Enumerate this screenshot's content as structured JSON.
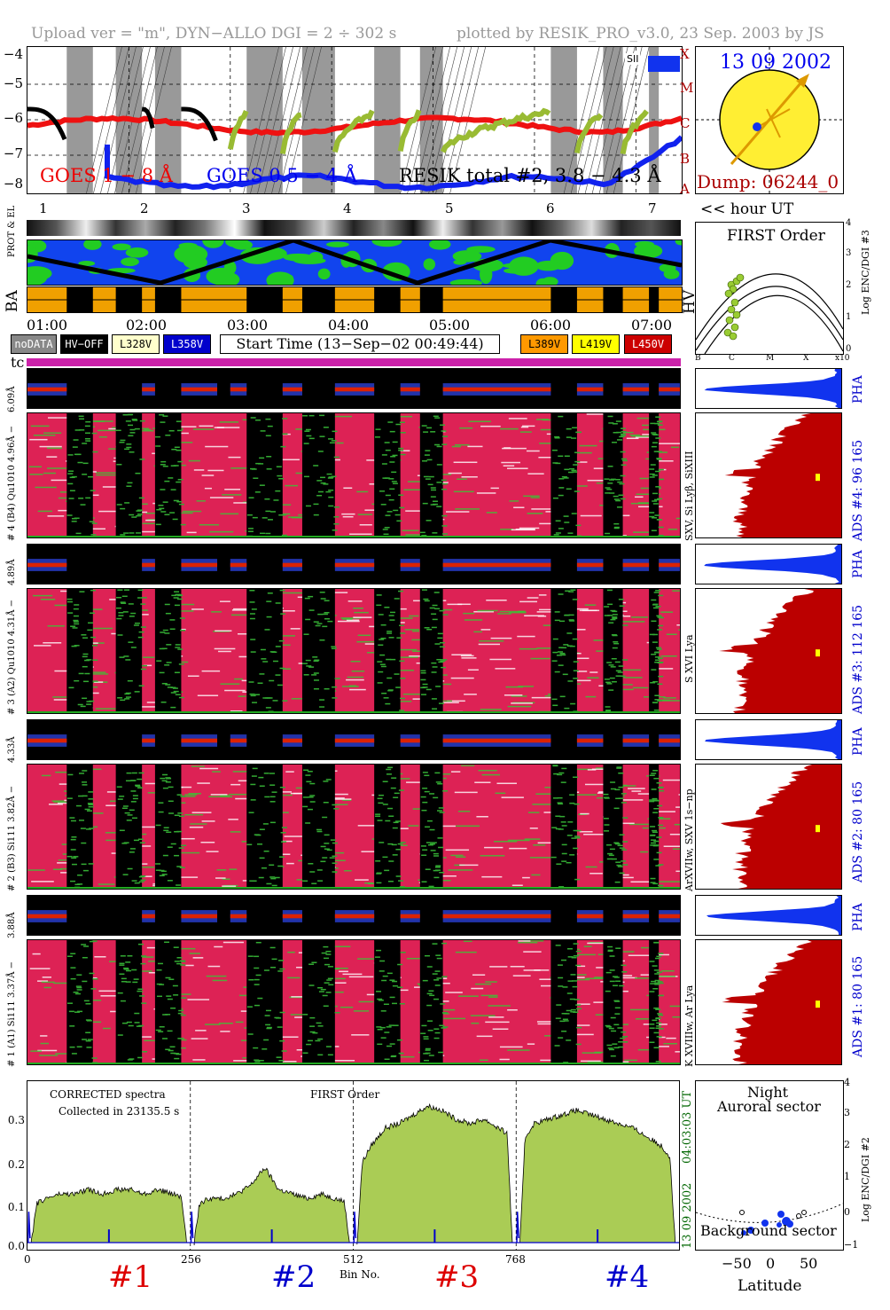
{
  "header": {
    "upload": "Upload ver = \"m\", DYN−ALLO DGI =   2 ÷ 302 s",
    "plotted": "plotted by RESIK_PRO_v3.0, 23 Sep. 2003 by JS"
  },
  "goes": {
    "labels": [
      "GOES 1 − 8 Å",
      "GOES 0.5 − 4 Å",
      "RESIK total #2, 3.8 − 4.3 Å"
    ],
    "colors": [
      "#ee0000",
      "#0000ee",
      "#000000"
    ],
    "yticks": [
      "−4",
      "−5",
      "−6",
      "−7",
      "−8"
    ],
    "classes": [
      "X",
      "M",
      "C",
      "B",
      "A"
    ],
    "saa_label": "SII",
    "hour_ticks": [
      "1",
      "2",
      "3",
      "4",
      "5",
      "6",
      "7"
    ],
    "hour_label": "<< hour UT"
  },
  "sun": {
    "date": "13 09 2002",
    "dump": "Dump: 06244_0"
  },
  "orbit": {
    "side_labels": [
      "PROT & EL",
      "BA",
      "HV"
    ],
    "times": [
      "01:00",
      "02:00",
      "03:00",
      "04:00",
      "05:00",
      "06:00",
      "07:00"
    ],
    "legend": [
      "noDATA",
      "HV−OFF",
      "L328V",
      "L358V",
      "L389V",
      "L419V",
      "L450V"
    ],
    "legend_colors": [
      "#888888",
      "#000000",
      "#ffffcc",
      "#0000cc",
      "#ff9900",
      "#ffff00",
      "#cc0000"
    ],
    "start_time": "Start Time (13−Sep−02 00:49:44)",
    "tc_label": "tc"
  },
  "first_order": {
    "title": "FIRST Order",
    "axis_label": "Log ENC/DGI #3",
    "yticks": [
      "4",
      "3",
      "2",
      "1",
      "0"
    ],
    "xticks": [
      "B",
      "C",
      "M",
      "X",
      "x10"
    ]
  },
  "channels": [
    {
      "pha_label": "6.09Å",
      "label": "# 4 (B4) Qu1010 4.96Å −",
      "lines": "SXV, Si Lyβ, SiXIII",
      "ads": "ADS #4:    96 165"
    },
    {
      "pha_label": "4.89Å",
      "label": "# 3 (A2) Qu1010 4.31Å −",
      "lines": "S XVI Lya",
      "ads": "ADS #3:    112 165"
    },
    {
      "pha_label": "4.33Å",
      "label": "# 2 (B3) Si111 3.82Å −",
      "lines": "ArXVIIw, SXV 1s−np",
      "ads": "ADS #2:    80 165"
    },
    {
      "pha_label": "3.88Å",
      "label": "# 1 (A1) Si111 3.37Å −",
      "lines": "K XVIIIw, Ar Lya",
      "ads": "ADS #1:    80 165"
    }
  ],
  "pha_word": "PHA",
  "spectrum": {
    "title1": "CORRECTED spectra",
    "title2": "Collected in 23135.5 s",
    "order": "FIRST Order",
    "date": "13 09 2002",
    "time": "04:03:03 UT",
    "xlabel": "Bin No.",
    "xticks": [
      "0",
      "256",
      "512",
      "768"
    ],
    "yticks": [
      "0.3",
      "0.2",
      "0.1",
      "0.0"
    ],
    "channels": [
      "#1",
      "#2",
      "#3",
      "#4"
    ],
    "channel_colors": [
      "#dd0000",
      "#0000cc",
      "#dd0000",
      "#0000cc"
    ]
  },
  "latitude": {
    "title1": "Night",
    "title2": "Auroral sector",
    "bottom": "Background sector",
    "xlabel": "Latitude",
    "xticks": [
      "−50",
      "0",
      "50"
    ],
    "yticks": [
      "4",
      "3",
      "2",
      "1",
      "0",
      "−1"
    ],
    "axis_label": "Log ENC/DGI #2"
  },
  "chart_data": {
    "type": "area",
    "title": "CORRECTED spectra",
    "xlabel": "Bin No.",
    "ylabel": "",
    "xlim": [
      0,
      1024
    ],
    "ylim": [
      0,
      0.35
    ],
    "channels": [
      {
        "name": "#1",
        "bins": [
          0,
          256
        ],
        "level": [
          0.08,
          0.1,
          0.11,
          0.11,
          0.12,
          0.11,
          0.12,
          0.12,
          0.11,
          0.12,
          0.11,
          0.1
        ]
      },
      {
        "name": "#2",
        "bins": [
          256,
          512
        ],
        "level": [
          0.08,
          0.1,
          0.1,
          0.11,
          0.13,
          0.17,
          0.12,
          0.11,
          0.1,
          0.11,
          0.1,
          0.09
        ]
      },
      {
        "name": "#3",
        "bins": [
          512,
          768
        ],
        "level": [
          0.16,
          0.22,
          0.26,
          0.27,
          0.29,
          0.31,
          0.3,
          0.28,
          0.27,
          0.28,
          0.26,
          0.24
        ]
      },
      {
        "name": "#4",
        "bins": [
          768,
          1024
        ],
        "level": [
          0.22,
          0.27,
          0.28,
          0.29,
          0.3,
          0.29,
          0.28,
          0.27,
          0.26,
          0.24,
          0.22,
          0.18
        ]
      }
    ]
  }
}
